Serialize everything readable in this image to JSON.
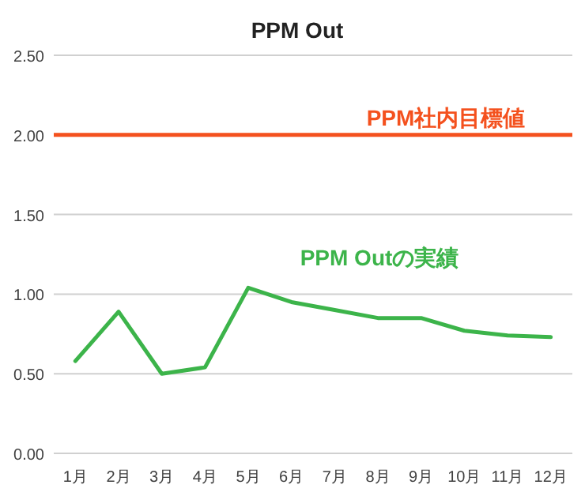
{
  "chart_data": {
    "type": "line",
    "title": "PPM Out",
    "categories": [
      "1月",
      "2月",
      "3月",
      "4月",
      "5月",
      "6月",
      "7月",
      "8月",
      "9月",
      "10月",
      "11月",
      "12月"
    ],
    "series": [
      {
        "name": "PPM Outの実績",
        "color": "#3cb44a",
        "values": [
          0.58,
          0.89,
          0.5,
          0.54,
          1.04,
          0.95,
          0.9,
          0.85,
          0.85,
          0.77,
          0.74,
          0.73
        ]
      }
    ],
    "ref_lines": [
      {
        "axis": "y",
        "value": 2.0,
        "label": "PPM社内目標値",
        "color": "#f4511e"
      }
    ],
    "ylim": [
      0,
      2.5
    ],
    "yticks": [
      {
        "value": 0,
        "label": "0.00"
      },
      {
        "value": 0.5,
        "label": "0.50"
      },
      {
        "value": 1,
        "label": "1.00"
      },
      {
        "value": 1.5,
        "label": "1.50"
      },
      {
        "value": 2,
        "label": "2.00"
      },
      {
        "value": 2.5,
        "label": "2.50"
      }
    ],
    "grid": "y",
    "legend": false,
    "marker": "none",
    "line_style": "solid"
  }
}
